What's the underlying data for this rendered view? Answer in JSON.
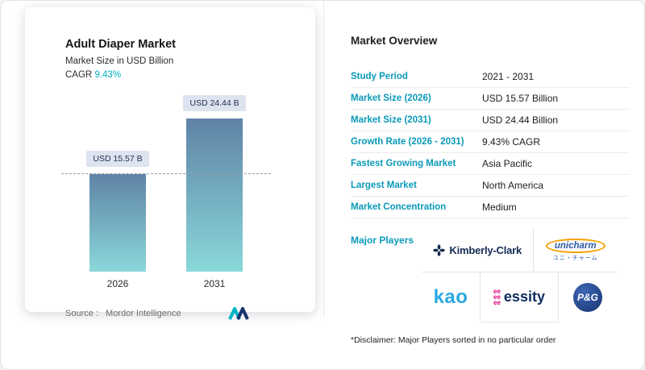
{
  "colors": {
    "accent_teal": "#00b2c3",
    "label_teal": "#0a9ab9",
    "navy": "#142a52",
    "badge_bg": "#dde3ef",
    "essity_magenta": "#e5007d",
    "kao_blue": "#2aa9e0",
    "pg_blue": "#16356f",
    "unicharm_orange": "#f6a000",
    "unicharm_blue": "#2d59a7"
  },
  "left_card": {
    "title": "Adult Diaper Market",
    "subtitle": "Market Size in USD Billion",
    "cagr_label": "CAGR",
    "cagr_value": "9.43%",
    "source_prefix": "Source :",
    "source_name": "Mordor Intelligence"
  },
  "chart_data": {
    "type": "bar",
    "title": "Adult Diaper Market",
    "ylabel": "Market Size in USD Billion",
    "categories": [
      "2026",
      "2031"
    ],
    "values": [
      15.57,
      24.44
    ],
    "value_labels": [
      "USD 15.57 B",
      "USD 24.44 B"
    ],
    "cagr_percent": 9.43,
    "reference_line": {
      "at": 15.57,
      "style": "dashed"
    },
    "bar_gradient": [
      "#5f83a6",
      "#8ad8da"
    ],
    "ylim": [
      0,
      25
    ],
    "grid": false,
    "legend": false
  },
  "overview": {
    "title": "Market Overview",
    "rows": [
      {
        "label": "Study Period",
        "value": "2021 - 2031"
      },
      {
        "label": "Market Size (2026)",
        "value": "USD 15.57 Billion"
      },
      {
        "label": "Market Size (2031)",
        "value": "USD 24.44 Billion"
      },
      {
        "label": "Growth Rate (2026 - 2031)",
        "value": "9.43% CAGR"
      },
      {
        "label": "Fastest Growing Market",
        "value": "Asia Pacific"
      },
      {
        "label": "Largest Market",
        "value": "North America"
      },
      {
        "label": "Market Concentration",
        "value": "Medium"
      }
    ],
    "major_players_label": "Major Players",
    "players": [
      "Kimberly-Clark",
      "unicharm",
      "kao",
      "essity",
      "P&G"
    ],
    "unicharm_jp": "ユニ・チャーム",
    "essity_mark_rows": [
      "ee",
      "ee",
      "ee"
    ],
    "disclaimer": "*Disclaimer: Major Players sorted in no particular order"
  }
}
